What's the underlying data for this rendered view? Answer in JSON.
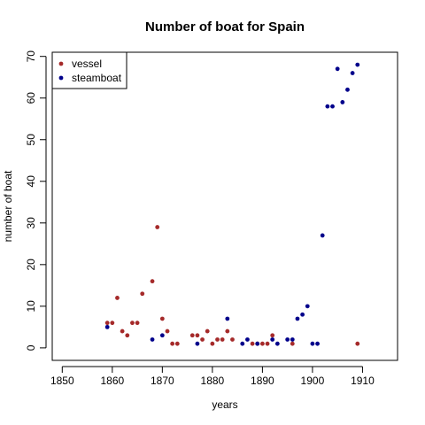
{
  "chart_data": {
    "type": "scatter",
    "title": "Number of boat for Spain",
    "xlabel": "years",
    "ylabel": "number of boat",
    "xlim": [
      1848,
      1917
    ],
    "ylim": [
      -3,
      71
    ],
    "xticks": [
      1850,
      1860,
      1870,
      1880,
      1890,
      1900,
      1910
    ],
    "yticks": [
      0,
      10,
      20,
      30,
      40,
      50,
      60,
      70
    ],
    "legend_position": "top-left",
    "grid": false,
    "series": [
      {
        "name": "vessel",
        "color": "#a52a2a",
        "points": [
          [
            1859,
            6
          ],
          [
            1860,
            6
          ],
          [
            1861,
            12
          ],
          [
            1862,
            4
          ],
          [
            1863,
            3
          ],
          [
            1864,
            6
          ],
          [
            1865,
            6
          ],
          [
            1866,
            13
          ],
          [
            1868,
            16
          ],
          [
            1869,
            29
          ],
          [
            1870,
            7
          ],
          [
            1871,
            4
          ],
          [
            1872,
            1
          ],
          [
            1873,
            1
          ],
          [
            1876,
            3
          ],
          [
            1877,
            3
          ],
          [
            1878,
            2
          ],
          [
            1879,
            4
          ],
          [
            1880,
            1
          ],
          [
            1881,
            2
          ],
          [
            1882,
            2
          ],
          [
            1883,
            4
          ],
          [
            1884,
            2
          ],
          [
            1888,
            1
          ],
          [
            1889,
            1
          ],
          [
            1890,
            1
          ],
          [
            1891,
            1
          ],
          [
            1892,
            3
          ],
          [
            1896,
            1
          ],
          [
            1909,
            1
          ]
        ]
      },
      {
        "name": "steamboat",
        "color": "#00008b",
        "points": [
          [
            1859,
            5
          ],
          [
            1868,
            2
          ],
          [
            1870,
            3
          ],
          [
            1877,
            1
          ],
          [
            1883,
            7
          ],
          [
            1886,
            1
          ],
          [
            1887,
            2
          ],
          [
            1889,
            1
          ],
          [
            1892,
            2
          ],
          [
            1893,
            1
          ],
          [
            1895,
            2
          ],
          [
            1896,
            2
          ],
          [
            1897,
            7
          ],
          [
            1898,
            8
          ],
          [
            1899,
            10
          ],
          [
            1900,
            1
          ],
          [
            1901,
            1
          ],
          [
            1902,
            27
          ],
          [
            1903,
            58
          ],
          [
            1904,
            58
          ],
          [
            1905,
            67
          ],
          [
            1906,
            59
          ],
          [
            1907,
            62
          ],
          [
            1908,
            66
          ],
          [
            1909,
            68
          ]
        ]
      }
    ]
  }
}
